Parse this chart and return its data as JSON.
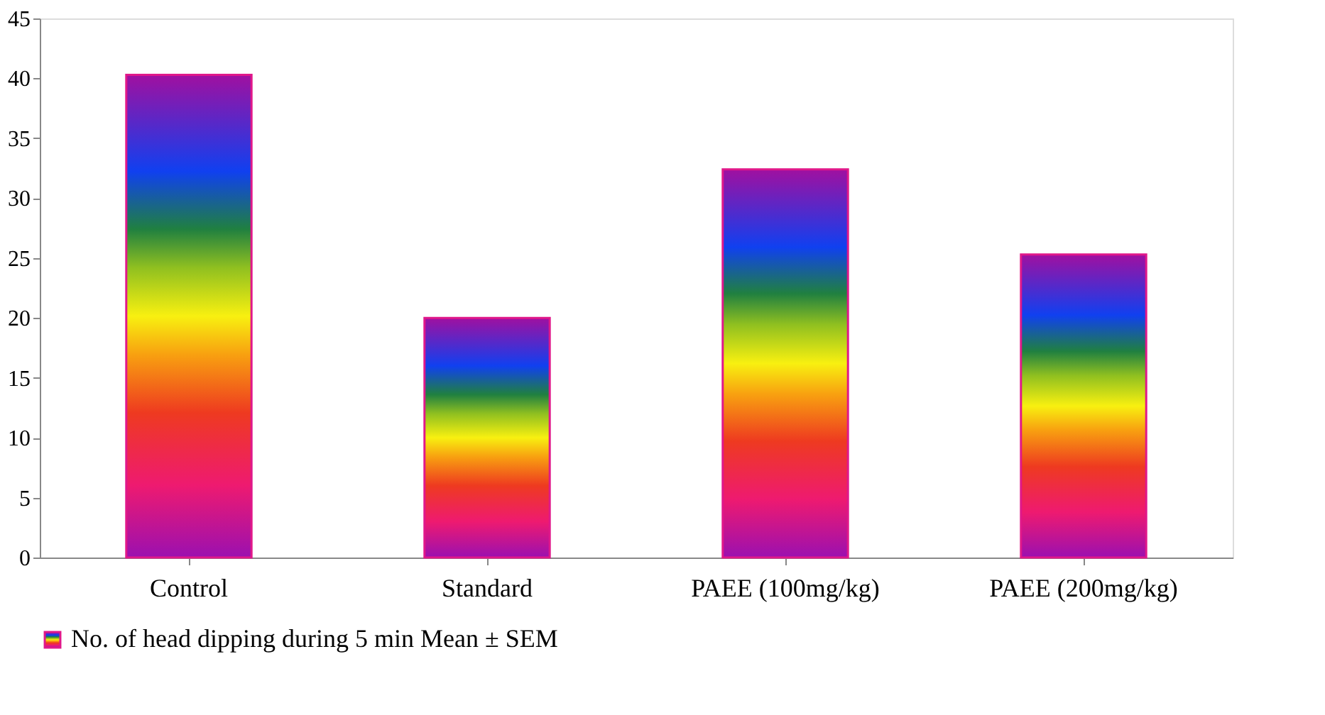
{
  "chart_data": {
    "type": "bar",
    "categories": [
      "Control",
      "Standard",
      "PAEE (100mg/kg)",
      "PAEE (200mg/kg)"
    ],
    "series": [
      {
        "name": "No. of head dipping during 5 min Mean ± SEM",
        "color": "#e0188a",
        "values": [
          40.3,
          20.0,
          32.4,
          25.3
        ]
      }
    ],
    "ylim": [
      0,
      45
    ],
    "yticks": [
      0,
      5,
      10,
      15,
      20,
      25,
      30,
      35,
      40,
      45
    ],
    "grid": false,
    "legend": "bottom"
  }
}
